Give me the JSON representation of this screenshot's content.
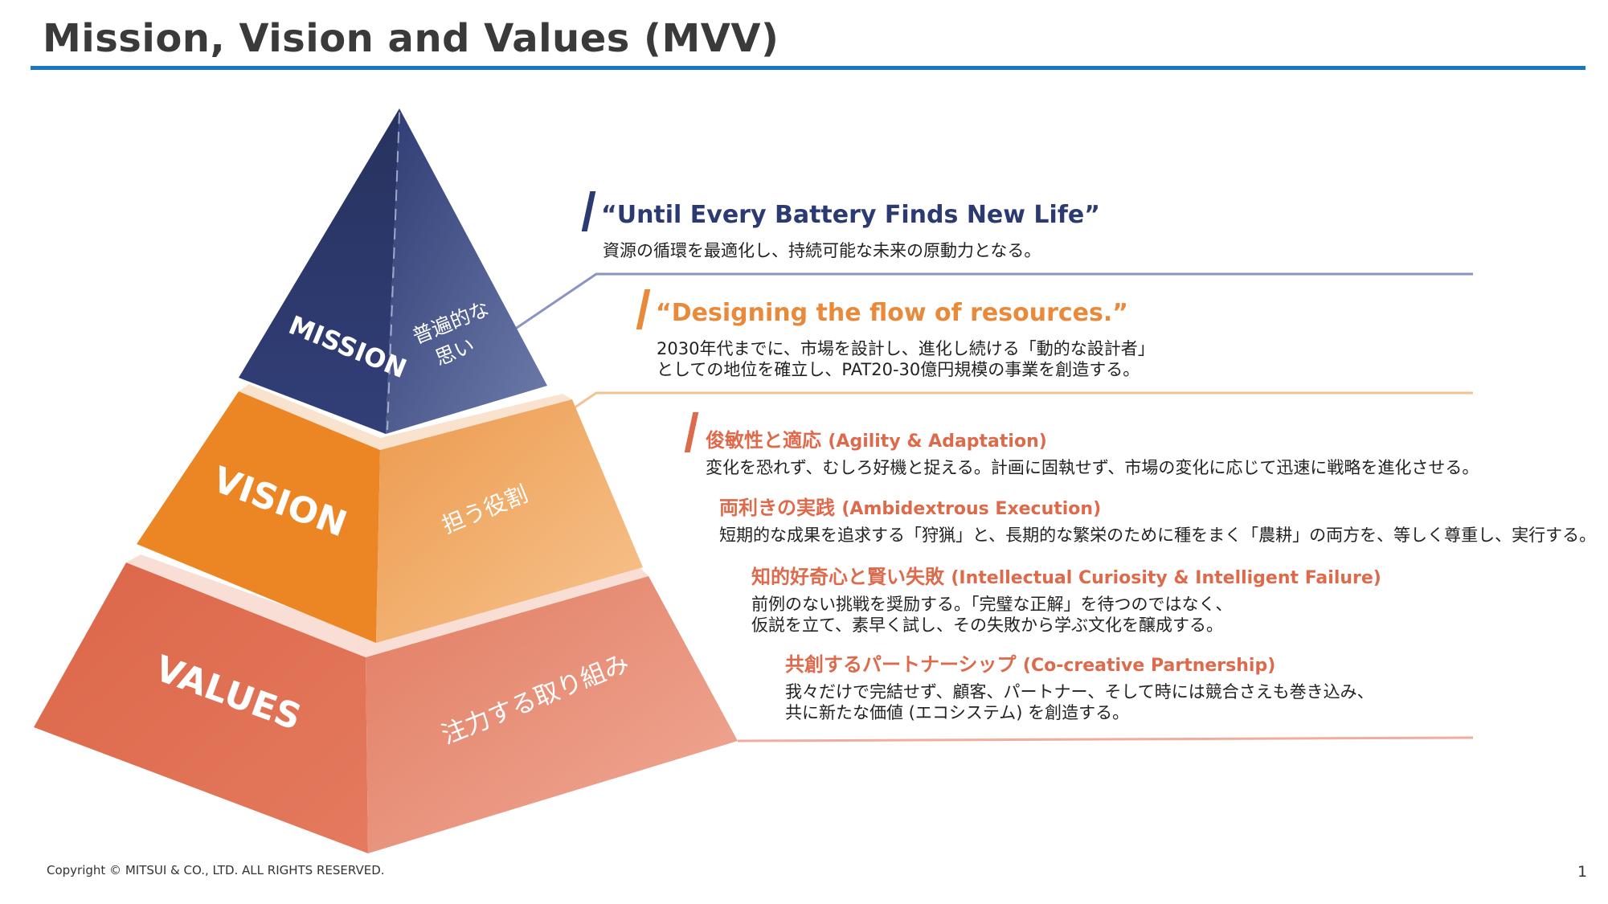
{
  "title": "Mission, Vision and Values (MVV)",
  "colors": {
    "title_rule": "#1a78c2",
    "mission": "#2c3a72",
    "vision": "#e9893a",
    "values": "#de6a4c"
  },
  "pyramid": {
    "mission_label": "MISSION",
    "mission_sub_1": "普遍的な",
    "mission_sub_2": "思い",
    "vision_label": "VISION",
    "vision_sub": "担う役割",
    "values_label": "VALUES",
    "values_sub": "注力する取り組み"
  },
  "mission": {
    "heading": "“Until Every Battery Finds New Life”",
    "text": "資源の循環を最適化し、持続可能な未来の原動力となる。"
  },
  "vision": {
    "heading": "“Designing the flow of resources.”",
    "text_1": "2030年代までに、市場を設計し、進化し続ける「動的な設計者」",
    "text_2": "としての地位を確立し、PAT20-30億円規模の事業を創造する。"
  },
  "values": [
    {
      "jp": "俊敏性と適応",
      "en": "(Agility & Adaptation)",
      "text_1": "変化を恐れず、むしろ好機と捉える。計画に固執せず、市場の変化に応じて迅速に戦略を進化させる。"
    },
    {
      "jp": "両利きの実践",
      "en": "(Ambidextrous Execution)",
      "text_1": "短期的な成果を追求する「狩猟」と、長期的な繁栄のために種をまく「農耕」の両方を、等しく尊重し、実行する。"
    },
    {
      "jp": "知的好奇心と賢い失敗",
      "en": "(Intellectual Curiosity & Intelligent Failure)",
      "text_1": "前例のない挑戦を奨励する。「完璧な正解」を待つのではなく、",
      "text_2": "仮説を立て、素早く試し、その失敗から学ぶ文化を醸成する。"
    },
    {
      "jp": "共創するパートナーシップ",
      "en": "(Co-creative Partnership)",
      "text_1": "我々だけで完結せず、顧客、パートナー、そして時には競合さえも巻き込み、",
      "text_2": "共に新たな価値 (エコシステム) を創造する。"
    }
  ],
  "footer": "Copyright © MITSUI & CO., LTD. ALL RIGHTS RESERVED.",
  "page_number": "1"
}
